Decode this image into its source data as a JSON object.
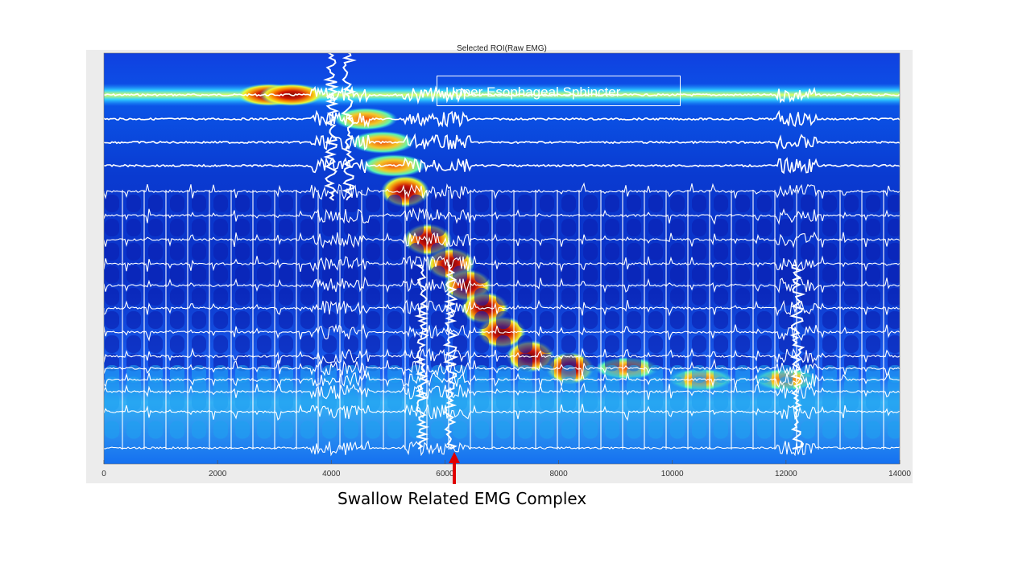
{
  "chart_data": {
    "type": "heatmap",
    "title": "Selected ROI(Raw EMG)",
    "xlabel": "",
    "ylabel": "",
    "xlim": [
      0,
      14000
    ],
    "x_ticks": [
      0,
      2000,
      4000,
      6000,
      8000,
      10000,
      12000,
      14000
    ],
    "x_tick_labels": [
      "0",
      "2000",
      "4000",
      "6000",
      "8000",
      "10000",
      "12000",
      "14000"
    ],
    "colormap": "jet",
    "channel_count": 17,
    "pressure_band": {
      "description_text": "Upper Esophageal Sphincter",
      "band_row": 2
    },
    "peristaltic_wave": [
      {
        "x": 2900,
        "row": 2
      },
      {
        "x": 3300,
        "row": 2
      },
      {
        "x": 4600,
        "row": 3
      },
      {
        "x": 4900,
        "row": 4
      },
      {
        "x": 5100,
        "row": 5
      },
      {
        "x": 5300,
        "row": 6
      },
      {
        "x": 5700,
        "row": 8
      },
      {
        "x": 6100,
        "row": 9
      },
      {
        "x": 6400,
        "row": 10
      },
      {
        "x": 6700,
        "row": 11
      },
      {
        "x": 7000,
        "row": 12
      },
      {
        "x": 7500,
        "row": 13
      },
      {
        "x": 8200,
        "row": 14
      },
      {
        "x": 9200,
        "row": 14
      },
      {
        "x": 10500,
        "row": 15
      },
      {
        "x": 12000,
        "row": 15
      }
    ],
    "emg_artifact_x": [
      4000,
      4300,
      5600,
      6100,
      12200
    ]
  },
  "annotations": {
    "ues_label": "Upper Esophageal Sphincter",
    "caption": "Swallow Related EMG Complex",
    "arrow_x": 6200
  },
  "colors": {
    "panel_bg": "#ececec",
    "arrow": "#e00000",
    "trace": "#ffffff"
  }
}
